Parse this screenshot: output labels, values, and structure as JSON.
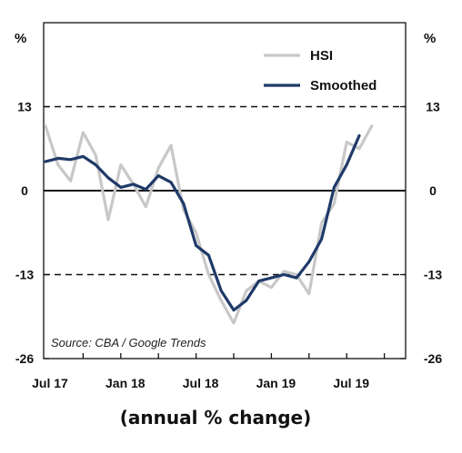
{
  "chart_data": {
    "type": "line",
    "y_unit_left": "%",
    "y_unit_right": "%",
    "ylim": [
      -26,
      26
    ],
    "yticks": [
      13,
      0,
      -13,
      -26
    ],
    "ytick_labels": [
      "13",
      "0",
      "-13",
      "-26"
    ],
    "dashed_reference_lines": [
      13,
      -13
    ],
    "solid_reference_line": 0,
    "xtick_labels": [
      "Jul 17",
      "Jan 18",
      "Jul 18",
      "Jan 19",
      "Jul 19"
    ],
    "xtick_month_index": [
      0,
      6,
      12,
      18,
      24
    ],
    "legend_position": "top-right",
    "grid": false,
    "series": [
      {
        "name": "HSI",
        "color": "#c8c8c8",
        "values": [
          10,
          4,
          1.5,
          9,
          5.5,
          -4.5,
          4,
          1,
          -2.5,
          3.5,
          7,
          -3,
          -6.5,
          -13,
          -17,
          -20.5,
          -15.5,
          -14,
          -15,
          -12.5,
          -13,
          -16,
          -5,
          -2,
          7.5,
          6.5,
          10
        ]
      },
      {
        "name": "Smoothed",
        "color": "#1f3a68",
        "values": [
          4.5,
          5,
          4.8,
          5.3,
          4,
          2,
          0.5,
          1,
          0.2,
          2.3,
          1.3,
          -2,
          -8.5,
          -10,
          -15.5,
          -18.5,
          -17,
          -14,
          -13.5,
          -13,
          -13.5,
          -11,
          -7.5,
          0.5,
          4,
          8.5
        ]
      }
    ],
    "annotation": "Source: CBA / Google Trends"
  },
  "caption": "(annual % change)",
  "colors": {
    "axis": "#111111",
    "hsi": "#c8c8c8",
    "smoothed": "#1f3a68"
  }
}
